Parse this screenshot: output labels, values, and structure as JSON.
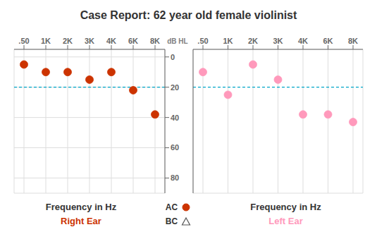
{
  "title": "Case Report: 62 year old female violinist",
  "chart_data": [
    {
      "type": "scatter",
      "subtitle": "Right Ear",
      "xlabel": "Frequency in Hz",
      "ylabel": "dB HL",
      "categories": [
        ".50",
        "1K",
        "2K",
        "3K",
        "4K",
        "6K",
        "8K"
      ],
      "series": [
        {
          "name": "AC",
          "color": "#CC3300",
          "marker": "circle",
          "values": [
            5,
            10,
            10,
            15,
            10,
            22,
            38
          ]
        },
        {
          "name": "BC",
          "marker": "triangle",
          "values": [
            null,
            null,
            null,
            null,
            null,
            null,
            null
          ]
        }
      ],
      "ylim": [
        90,
        -5
      ],
      "yticks": [
        0,
        20,
        40,
        60,
        80
      ],
      "reference_line": 20,
      "grid": true,
      "legend": "bottom"
    },
    {
      "type": "scatter",
      "subtitle": "Left Ear",
      "xlabel": "Frequency in Hz",
      "categories": [
        ".50",
        "1K",
        "2K",
        "3K",
        "4K",
        "6K",
        "8K"
      ],
      "series": [
        {
          "name": "AC",
          "color": "#FF99BB",
          "marker": "circle",
          "values": [
            10,
            25,
            5,
            15,
            38,
            38,
            43
          ]
        }
      ],
      "ylim": [
        90,
        -5
      ],
      "yticks": [
        0,
        20,
        40,
        60,
        80
      ],
      "reference_line": 20,
      "grid": true,
      "tick_labels": "x"
    }
  ]
}
